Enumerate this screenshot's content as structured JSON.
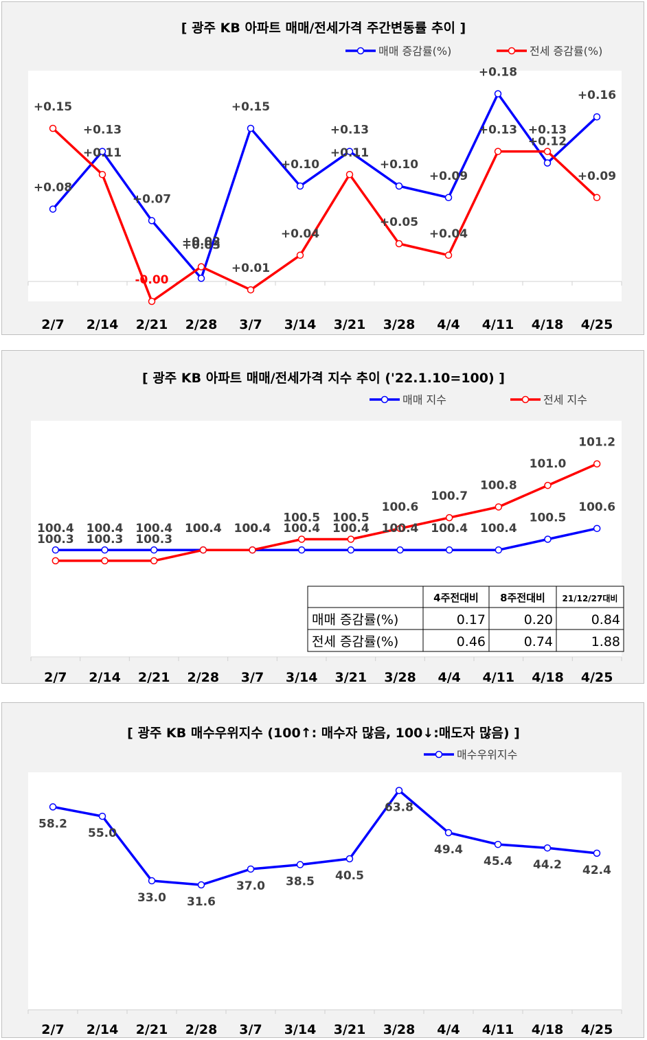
{
  "charts": [
    {
      "type": "line",
      "title": "[  광주  KB 아파트 매매/전세가격 주간변동률 추이  ]",
      "categories": [
        "2/7",
        "2/14",
        "2/21",
        "2/28",
        "3/7",
        "3/14",
        "3/21",
        "3/28",
        "4/4",
        "4/11",
        "4/18",
        "4/25"
      ],
      "series": [
        {
          "name": "매매 증감률(%)",
          "color": "#0000ff",
          "values": [
            0.08,
            0.13,
            0.07,
            0.02,
            0.15,
            0.1,
            0.13,
            0.1,
            0.09,
            0.18,
            0.12,
            0.16
          ],
          "labels": [
            "+0.08",
            "+0.13",
            "+0.07",
            "+0.02",
            "+0.15",
            "+0.10",
            "+0.13",
            "+0.10",
            "+0.09",
            "+0.18",
            "+0.12",
            "+0.16"
          ]
        },
        {
          "name": "전세 증감률(%)",
          "color": "#ff0000",
          "values": [
            0.15,
            0.11,
            0.0,
            0.03,
            0.01,
            0.04,
            0.11,
            0.05,
            0.04,
            0.13,
            0.13,
            0.09
          ],
          "labels": [
            "+0.15",
            "+0.11",
            "-0.00",
            "+0.03",
            "+0.01",
            "+0.04",
            "+0.11",
            "+0.05",
            "+0.04",
            "+0.13",
            "+0.13",
            "+0.09"
          ]
        }
      ],
      "ylim": [
        0,
        0.2
      ],
      "legend": "top-right"
    },
    {
      "type": "line",
      "title": "[  광주  KB 아파트 매매/전세가격 지수 추이 ('22.1.10=100)  ]",
      "categories": [
        "2/7",
        "2/14",
        "2/21",
        "2/28",
        "3/7",
        "3/14",
        "3/21",
        "3/28",
        "4/4",
        "4/11",
        "4/18",
        "4/25"
      ],
      "series": [
        {
          "name": "매매 지수",
          "color": "#0000ff",
          "values": [
            100.4,
            100.4,
            100.4,
            100.4,
            100.4,
            100.4,
            100.4,
            100.4,
            100.4,
            100.4,
            100.5,
            100.6
          ],
          "labels": [
            "100.4",
            "100.4",
            "100.4",
            "100.4",
            "100.4",
            "100.4",
            "100.4",
            "100.4",
            "100.4",
            "100.4",
            "100.5",
            "100.6"
          ]
        },
        {
          "name": "전세 지수",
          "color": "#ff0000",
          "values": [
            100.3,
            100.3,
            100.3,
            100.4,
            100.4,
            100.5,
            100.5,
            100.6,
            100.7,
            100.8,
            101.0,
            101.2
          ],
          "labels": [
            "100.3",
            "100.3",
            "100.3",
            "100.4",
            "100.4",
            "100.5",
            "100.5",
            "100.6",
            "100.7",
            "100.8",
            "101.0",
            "101.2"
          ]
        }
      ],
      "ylim": [
        99.4,
        101.6
      ],
      "legend": "top-right",
      "table": {
        "headers": [
          "4주전대비",
          "8주전대비",
          "21/12/27대비"
        ],
        "rows": [
          {
            "label": "매매 증감률(%)",
            "cells": [
              "0.17",
              "0.20",
              "0.84"
            ]
          },
          {
            "label": "전세 증감률(%)",
            "cells": [
              "0.46",
              "0.74",
              "1.88"
            ]
          }
        ]
      }
    },
    {
      "type": "line",
      "title": "[  광주  KB 매수우위지수 (100↑: 매수자 많음, 100↓:매도자 많음)  ]",
      "categories": [
        "2/7",
        "2/14",
        "2/21",
        "2/28",
        "3/7",
        "3/14",
        "3/21",
        "3/28",
        "4/4",
        "4/11",
        "4/18",
        "4/25"
      ],
      "series": [
        {
          "name": "매수우위지수",
          "color": "#0000ff",
          "values": [
            58.2,
            55.0,
            33.0,
            31.6,
            37.0,
            38.5,
            40.5,
            63.8,
            49.4,
            45.4,
            44.2,
            42.4
          ],
          "labels": [
            "58.2",
            "55.0",
            "33.0",
            "31.6",
            "37.0",
            "38.5",
            "40.5",
            "63.8",
            "49.4",
            "45.4",
            "44.2",
            "42.4"
          ]
        }
      ],
      "ylim": [
        -11,
        70
      ],
      "legend": "top-right"
    }
  ]
}
